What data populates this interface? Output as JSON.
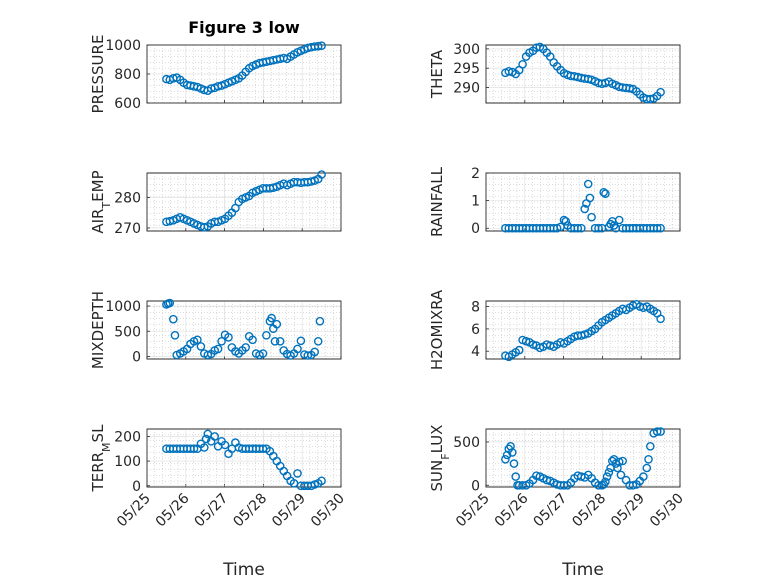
{
  "chart_data": [
    {
      "type": "scatter",
      "title": "Figure 3 low",
      "ylabel_main": "PRESSURE",
      "xlim": [
        "05/25",
        "05/30"
      ],
      "ylim": [
        600,
        1000
      ],
      "yticks": [
        "600",
        "800",
        "1000"
      ],
      "x_ticklabels": [],
      "series": [
        {
          "color": "#0072bd",
          "x": [
            5.0,
            5.1,
            5.2,
            5.3,
            5.4,
            5.5,
            5.6,
            5.7,
            5.8,
            5.9,
            6.0,
            6.1,
            6.2,
            6.3,
            6.4,
            6.5,
            6.6,
            6.7,
            6.8,
            6.9,
            7.0,
            7.1,
            7.2,
            7.3,
            7.4,
            7.5,
            7.6,
            7.7,
            7.8,
            7.9,
            8.0,
            8.1,
            8.2,
            8.3,
            8.4,
            8.5,
            8.6,
            8.7,
            8.8,
            8.9,
            9.0,
            9.1,
            9.2,
            9.3,
            9.4,
            9.5
          ],
          "y": [
            765,
            760,
            770,
            775,
            760,
            740,
            725,
            720,
            715,
            710,
            700,
            690,
            685,
            700,
            705,
            715,
            720,
            730,
            740,
            750,
            760,
            770,
            790,
            815,
            840,
            855,
            865,
            875,
            880,
            885,
            890,
            895,
            900,
            905,
            910,
            905,
            920,
            935,
            950,
            960,
            970,
            980,
            985,
            990,
            992,
            995
          ]
        }
      ]
    },
    {
      "type": "scatter",
      "ylabel_main": "THETA",
      "xlim": [
        "05/25",
        "05/30"
      ],
      "ylim": [
        286,
        301
      ],
      "yticks": [
        "290",
        "295",
        "300"
      ],
      "x_ticklabels": [],
      "series": [
        {
          "color": "#0072bd",
          "x": [
            5.0,
            5.1,
            5.2,
            5.3,
            5.4,
            5.5,
            5.6,
            5.7,
            5.8,
            5.9,
            6.0,
            6.1,
            6.2,
            6.3,
            6.4,
            6.5,
            6.6,
            6.7,
            6.8,
            6.9,
            7.0,
            7.1,
            7.2,
            7.3,
            7.4,
            7.5,
            7.6,
            7.7,
            7.8,
            7.9,
            8.0,
            8.1,
            8.2,
            8.3,
            8.4,
            8.5,
            8.6,
            8.7,
            8.8,
            8.9,
            9.0,
            9.1,
            9.2,
            9.3,
            9.4,
            9.5
          ],
          "y": [
            293.8,
            294.2,
            294.0,
            293.5,
            294.5,
            296.0,
            298.0,
            299.0,
            299.5,
            300.3,
            300.5,
            300.0,
            299.0,
            298.0,
            296.5,
            295.5,
            294.5,
            293.7,
            293.3,
            293.0,
            292.9,
            292.7,
            292.5,
            292.3,
            292.2,
            292.0,
            291.6,
            291.2,
            291.0,
            291.2,
            291.5,
            291.0,
            290.6,
            290.2,
            290.0,
            289.9,
            289.8,
            289.6,
            289.0,
            288.2,
            287.4,
            287.0,
            287.0,
            287.2,
            287.8,
            288.8
          ]
        }
      ]
    },
    {
      "type": "scatter",
      "ylabel_main": "AIR",
      "ylabel_sub": "T",
      "ylabel_post": "EMP",
      "xlim": [
        "05/25",
        "05/30"
      ],
      "ylim": [
        269,
        288
      ],
      "yticks": [
        "270",
        "280"
      ],
      "x_ticklabels": [],
      "series": [
        {
          "color": "#0072bd",
          "x": [
            5.0,
            5.1,
            5.2,
            5.3,
            5.4,
            5.5,
            5.6,
            5.7,
            5.8,
            5.9,
            6.0,
            6.1,
            6.2,
            6.3,
            6.4,
            6.5,
            6.6,
            6.7,
            6.8,
            6.9,
            7.0,
            7.1,
            7.2,
            7.3,
            7.4,
            7.5,
            7.6,
            7.7,
            7.8,
            7.9,
            8.0,
            8.1,
            8.2,
            8.3,
            8.4,
            8.5,
            8.6,
            8.7,
            8.8,
            8.9,
            9.0,
            9.1,
            9.2,
            9.3,
            9.4,
            9.5
          ],
          "y": [
            272.0,
            272.2,
            272.5,
            273.0,
            273.5,
            273.0,
            272.5,
            272.0,
            271.5,
            271.0,
            270.5,
            270.2,
            270.5,
            271.5,
            272.0,
            272.0,
            272.5,
            273.0,
            274.0,
            275.0,
            276.5,
            278.5,
            279.5,
            280.0,
            280.5,
            281.5,
            282.0,
            282.5,
            283.0,
            283.0,
            283.0,
            283.2,
            283.5,
            284.0,
            284.5,
            284.0,
            284.5,
            285.0,
            285.0,
            284.8,
            285.0,
            285.0,
            285.2,
            285.5,
            286.0,
            287.5
          ]
        }
      ]
    },
    {
      "type": "scatter",
      "ylabel_main": "RAINFALL",
      "xlim": [
        "05/25",
        "05/30"
      ],
      "ylim": [
        -0.1,
        2.0
      ],
      "yticks": [
        "0",
        "1",
        "2"
      ],
      "x_ticklabels": [],
      "series": [
        {
          "color": "#0072bd",
          "x": [
            5.0,
            5.1,
            5.2,
            5.3,
            5.4,
            5.5,
            5.6,
            5.7,
            5.8,
            5.9,
            6.0,
            6.1,
            6.2,
            6.3,
            6.4,
            6.5,
            6.6,
            6.7,
            6.75,
            6.8,
            6.9,
            7.0,
            7.1,
            7.2,
            7.3,
            7.35,
            7.4,
            7.45,
            7.5,
            7.6,
            7.7,
            7.8,
            7.85,
            7.9,
            8.0,
            8.05,
            8.1,
            8.15,
            8.2,
            8.3,
            8.4,
            8.5,
            8.6,
            8.7,
            8.8,
            8.9,
            9.0,
            9.1,
            9.2,
            9.3,
            9.4,
            9.5
          ],
          "y": [
            0,
            0,
            0,
            0,
            0,
            0,
            0,
            0,
            0,
            0,
            0,
            0,
            0,
            0,
            0,
            0,
            0.05,
            0.3,
            0.25,
            0.1,
            0,
            0,
            0,
            0,
            0.7,
            0.9,
            1.6,
            1.1,
            0.4,
            0,
            0,
            0,
            1.3,
            1.25,
            0.05,
            0.15,
            0.25,
            0.1,
            0,
            0.3,
            0,
            0,
            0,
            0,
            0,
            0,
            0,
            0,
            0,
            0,
            0,
            0
          ]
        }
      ]
    },
    {
      "type": "scatter",
      "ylabel_main": "MIXDEPTH",
      "xlim": [
        "05/25",
        "05/30"
      ],
      "ylim": [
        -50,
        1100
      ],
      "yticks": [
        "0",
        "500",
        "1000"
      ],
      "x_ticklabels": [],
      "series": [
        {
          "color": "#0072bd",
          "x": [
            5.0,
            5.05,
            5.1,
            5.2,
            5.25,
            5.3,
            5.4,
            5.5,
            5.6,
            5.7,
            5.8,
            5.9,
            6.0,
            6.1,
            6.2,
            6.3,
            6.4,
            6.5,
            6.6,
            6.7,
            6.8,
            6.9,
            7.0,
            7.1,
            7.2,
            7.3,
            7.4,
            7.5,
            7.6,
            7.7,
            7.8,
            7.9,
            8.0,
            8.05,
            8.1,
            8.15,
            8.2,
            8.3,
            8.4,
            8.5,
            8.6,
            8.7,
            8.8,
            8.9,
            9.0,
            9.1,
            9.2,
            9.3,
            9.4,
            9.45
          ],
          "y": [
            1030,
            1050,
            1060,
            740,
            420,
            30,
            60,
            100,
            150,
            250,
            300,
            330,
            200,
            60,
            30,
            50,
            120,
            150,
            300,
            430,
            380,
            180,
            100,
            60,
            120,
            180,
            400,
            330,
            60,
            30,
            60,
            420,
            700,
            760,
            550,
            300,
            640,
            300,
            120,
            50,
            20,
            60,
            150,
            310,
            40,
            20,
            30,
            90,
            300,
            700
          ]
        }
      ]
    },
    {
      "type": "scatter",
      "ylabel_main": "H2OMIXRA",
      "xlim": [
        "05/25",
        "05/30"
      ],
      "ylim": [
        3.3,
        8.5
      ],
      "yticks": [
        "4",
        "6",
        "8"
      ],
      "x_ticklabels": [],
      "series": [
        {
          "color": "#0072bd",
          "x": [
            5.0,
            5.1,
            5.2,
            5.3,
            5.4,
            5.5,
            5.6,
            5.7,
            5.8,
            5.9,
            6.0,
            6.1,
            6.2,
            6.3,
            6.4,
            6.5,
            6.6,
            6.7,
            6.8,
            6.9,
            7.0,
            7.1,
            7.2,
            7.3,
            7.4,
            7.5,
            7.6,
            7.7,
            7.8,
            7.9,
            8.0,
            8.1,
            8.2,
            8.3,
            8.4,
            8.5,
            8.6,
            8.7,
            8.8,
            8.9,
            9.0,
            9.1,
            9.2,
            9.3,
            9.4,
            9.5
          ],
          "y": [
            3.6,
            3.5,
            3.7,
            3.9,
            4.1,
            5.0,
            4.9,
            4.8,
            4.6,
            4.5,
            4.3,
            4.4,
            4.6,
            4.5,
            4.4,
            4.6,
            4.8,
            4.7,
            4.9,
            5.1,
            5.3,
            5.4,
            5.4,
            5.5,
            5.6,
            5.8,
            6.0,
            6.3,
            6.6,
            6.8,
            7.0,
            7.2,
            7.4,
            7.6,
            7.8,
            7.7,
            7.9,
            8.1,
            8.2,
            8.0,
            7.9,
            8.0,
            7.8,
            7.6,
            7.4,
            6.9
          ]
        }
      ]
    },
    {
      "type": "scatter",
      "ylabel_main": "TERR",
      "ylabel_sub": "M",
      "ylabel_post": "SL",
      "xlabel": "Time",
      "xlim": [
        "05/25",
        "05/30"
      ],
      "ylim": [
        -5,
        230
      ],
      "yticks": [
        "0",
        "100",
        "200"
      ],
      "x_ticklabels": [
        "05/25",
        "05/26",
        "05/27",
        "05/28",
        "05/29",
        "05/30"
      ],
      "series": [
        {
          "color": "#0072bd",
          "x": [
            5.0,
            5.1,
            5.2,
            5.3,
            5.4,
            5.5,
            5.6,
            5.7,
            5.8,
            5.9,
            6.0,
            6.1,
            6.15,
            6.2,
            6.3,
            6.4,
            6.5,
            6.6,
            6.7,
            6.8,
            6.9,
            7.0,
            7.1,
            7.2,
            7.3,
            7.4,
            7.5,
            7.6,
            7.7,
            7.8,
            7.9,
            8.0,
            8.1,
            8.2,
            8.3,
            8.4,
            8.5,
            8.6,
            8.7,
            8.8,
            8.9,
            9.0,
            9.1,
            9.2,
            9.3,
            9.4,
            9.5
          ],
          "y": [
            150,
            150,
            150,
            150,
            150,
            150,
            150,
            150,
            150,
            150,
            170,
            155,
            190,
            210,
            180,
            200,
            160,
            180,
            165,
            130,
            150,
            175,
            155,
            150,
            150,
            150,
            150,
            150,
            150,
            150,
            150,
            140,
            120,
            100,
            80,
            60,
            40,
            20,
            10,
            50,
            0,
            0,
            0,
            0,
            5,
            10,
            20
          ]
        }
      ]
    },
    {
      "type": "scatter",
      "ylabel_main": "SUN",
      "ylabel_sub": "F",
      "ylabel_post": "LUX",
      "xlabel": "Time",
      "xlim": [
        "05/25",
        "05/30"
      ],
      "ylim": [
        -20,
        650
      ],
      "yticks": [
        "0",
        "500"
      ],
      "x_ticklabels": [
        "05/25",
        "05/26",
        "05/27",
        "05/28",
        "05/29",
        "05/30"
      ],
      "series": [
        {
          "color": "#0072bd",
          "x": [
            5.0,
            5.05,
            5.1,
            5.15,
            5.2,
            5.25,
            5.3,
            5.35,
            5.4,
            5.5,
            5.6,
            5.7,
            5.8,
            5.9,
            6.0,
            6.1,
            6.2,
            6.3,
            6.4,
            6.5,
            6.6,
            6.7,
            6.8,
            6.9,
            7.0,
            7.1,
            7.2,
            7.3,
            7.4,
            7.5,
            7.6,
            7.7,
            7.8,
            7.85,
            7.9,
            7.95,
            8.0,
            8.05,
            8.1,
            8.15,
            8.2,
            8.25,
            8.3,
            8.35,
            8.4,
            8.5,
            8.6,
            8.7,
            8.8,
            8.9,
            9.0,
            9.1,
            9.15,
            9.2,
            9.3,
            9.4,
            9.5
          ],
          "y": [
            300,
            350,
            420,
            450,
            380,
            250,
            100,
            0,
            0,
            0,
            0,
            20,
            60,
            110,
            100,
            80,
            60,
            50,
            30,
            10,
            0,
            0,
            0,
            30,
            80,
            110,
            100,
            90,
            120,
            80,
            30,
            0,
            0,
            10,
            40,
            100,
            150,
            200,
            280,
            300,
            250,
            200,
            270,
            120,
            280,
            60,
            0,
            0,
            10,
            50,
            100,
            200,
            300,
            450,
            600,
            620,
            620
          ]
        }
      ]
    }
  ]
}
